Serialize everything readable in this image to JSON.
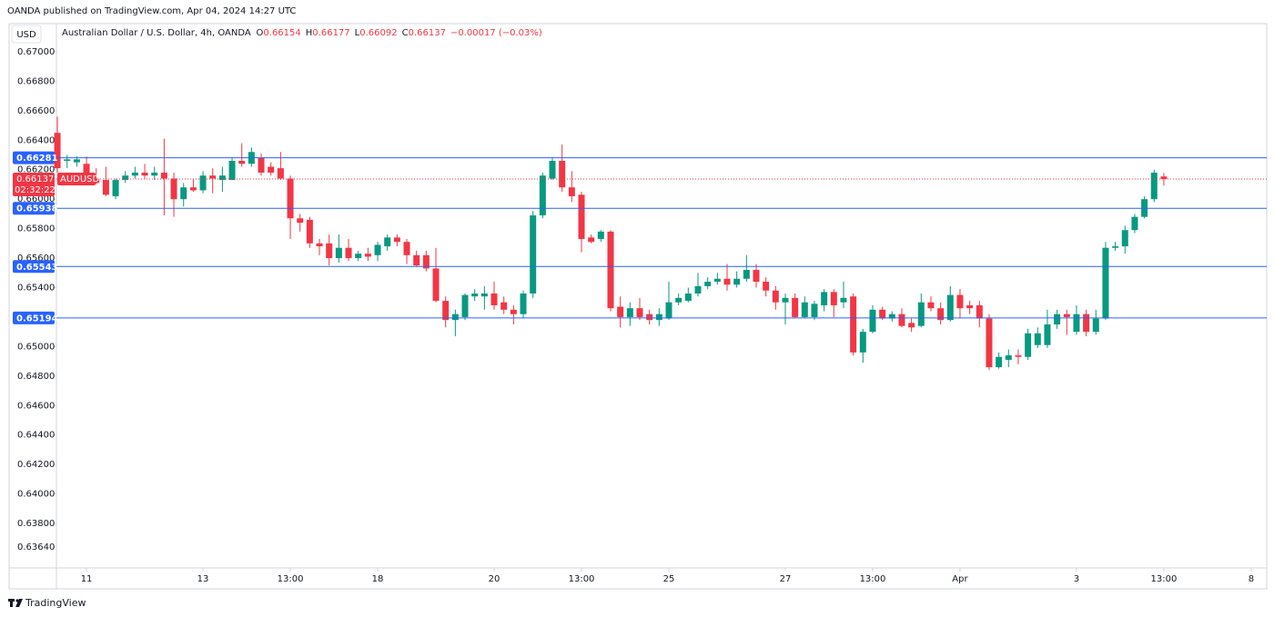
{
  "header": {
    "published": "OANDA published on TradingView.com, Apr 04, 2024 14:27 UTC",
    "currency": "USD",
    "symbol": "Australian Dollar / U.S. Dollar, 4h, OANDA",
    "ohlc_letters": [
      "O",
      "H",
      "L",
      "C"
    ],
    "change": "−0.00017 (−0.03%)"
  },
  "chart_data": {
    "type": "candlestick",
    "x": [
      -3,
      -2,
      -1,
      0,
      1,
      2,
      3,
      4,
      5,
      6,
      7,
      8,
      9,
      10,
      11,
      12,
      13,
      14,
      15,
      16,
      17,
      18,
      19,
      20,
      21,
      22,
      23,
      24,
      25,
      26,
      27,
      28,
      29,
      30,
      31,
      32,
      33,
      34,
      35,
      36,
      37,
      38,
      39,
      40,
      41,
      42,
      43,
      44,
      45,
      46,
      47,
      48,
      49,
      50,
      51,
      52,
      53,
      54,
      55,
      56,
      57,
      58,
      59,
      60,
      61,
      62,
      63,
      64,
      65,
      66,
      67,
      68,
      69,
      70,
      71,
      72,
      73,
      74,
      75,
      76,
      77,
      78,
      79,
      80,
      81,
      82,
      83,
      84,
      85,
      86,
      87,
      88,
      89,
      90,
      91,
      92,
      93,
      94,
      95,
      96,
      97,
      98,
      99,
      100,
      101,
      102,
      103,
      104,
      105,
      106,
      107,
      108,
      109,
      110,
      111
    ],
    "open": [
      0.6645,
      0.6626,
      0.6625,
      0.6624,
      0.6614,
      0.6613,
      0.6602,
      0.6613,
      0.6616,
      0.6618,
      0.6616,
      0.6618,
      0.6614,
      0.66,
      0.6608,
      0.6606,
      0.6616,
      0.6613,
      0.6613,
      0.6626,
      0.6624,
      0.6628,
      0.6622,
      0.6621,
      0.6614,
      0.6587,
      0.6586,
      0.657,
      0.657,
      0.656,
      0.6567,
      0.656,
      0.6563,
      0.6562,
      0.6568,
      0.6574,
      0.6571,
      0.6562,
      0.6562,
      0.6553,
      0.6531,
      0.6518,
      0.652,
      0.6534,
      0.6534,
      0.6536,
      0.653,
      0.6525,
      0.6522,
      0.6536,
      0.6589,
      0.6614,
      0.6626,
      0.6608,
      0.6603,
      0.6574,
      0.6573,
      0.6578,
      0.6527,
      0.652,
      0.6526,
      0.6522,
      0.6518,
      0.6519,
      0.653,
      0.6531,
      0.6536,
      0.6541,
      0.6544,
      0.6546,
      0.6542,
      0.6546,
      0.6552,
      0.6544,
      0.6538,
      0.653,
      0.6533,
      0.652,
      0.652,
      0.6528,
      0.6537,
      0.653,
      0.6534,
      0.6496,
      0.651,
      0.6525,
      0.6519,
      0.6522,
      0.6516,
      0.6514,
      0.653,
      0.6526,
      0.6518,
      0.6535,
      0.6528,
      0.6528,
      0.6519,
      0.6486,
      0.6491,
      0.6494,
      0.6493,
      0.6501,
      0.6501,
      0.6515,
      0.6522,
      0.651,
      0.6522,
      0.651,
      0.6519,
      0.6567,
      0.6568,
      0.6579,
      0.6588,
      0.66,
      0.66154
    ],
    "high": [
      0.6656,
      0.663,
      0.6629,
      0.6629,
      0.6621,
      0.6622,
      0.6614,
      0.6619,
      0.6622,
      0.6624,
      0.6622,
      0.6641,
      0.6618,
      0.6611,
      0.6614,
      0.6619,
      0.6621,
      0.6622,
      0.6628,
      0.6638,
      0.6635,
      0.6631,
      0.6625,
      0.6632,
      0.6616,
      0.659,
      0.6588,
      0.6573,
      0.6576,
      0.6576,
      0.6573,
      0.6565,
      0.6567,
      0.6571,
      0.6576,
      0.6576,
      0.6573,
      0.6565,
      0.6565,
      0.6567,
      0.6534,
      0.6525,
      0.6536,
      0.6539,
      0.6541,
      0.6544,
      0.6534,
      0.6528,
      0.6538,
      0.6592,
      0.6618,
      0.6628,
      0.6637,
      0.6619,
      0.6605,
      0.6576,
      0.6579,
      0.6579,
      0.6534,
      0.653,
      0.6533,
      0.6525,
      0.6526,
      0.6544,
      0.6536,
      0.654,
      0.655,
      0.6547,
      0.655,
      0.6556,
      0.6551,
      0.6562,
      0.6556,
      0.6547,
      0.6541,
      0.6536,
      0.6536,
      0.6534,
      0.6531,
      0.6539,
      0.6539,
      0.6544,
      0.6536,
      0.6512,
      0.6528,
      0.6527,
      0.6524,
      0.6526,
      0.6519,
      0.6536,
      0.6534,
      0.653,
      0.6541,
      0.6539,
      0.6531,
      0.6531,
      0.6522,
      0.6496,
      0.6498,
      0.6498,
      0.6512,
      0.6513,
      0.6525,
      0.6525,
      0.6525,
      0.6528,
      0.6525,
      0.6525,
      0.6571,
      0.6571,
      0.6582,
      0.659,
      0.6602,
      0.662,
      0.66177
    ],
    "low": [
      0.6618,
      0.6621,
      0.6622,
      0.6611,
      0.661,
      0.6602,
      0.66,
      0.6611,
      0.6614,
      0.6614,
      0.6613,
      0.6589,
      0.6588,
      0.6595,
      0.6605,
      0.6604,
      0.6604,
      0.6605,
      0.6613,
      0.6622,
      0.6622,
      0.6616,
      0.6616,
      0.6613,
      0.6573,
      0.6578,
      0.6567,
      0.6562,
      0.6555,
      0.6557,
      0.6558,
      0.6558,
      0.6558,
      0.6558,
      0.6565,
      0.6568,
      0.6556,
      0.6554,
      0.6551,
      0.653,
      0.6513,
      0.6507,
      0.6518,
      0.6531,
      0.6525,
      0.6525,
      0.6522,
      0.6515,
      0.6519,
      0.6533,
      0.6587,
      0.6613,
      0.6605,
      0.6598,
      0.6564,
      0.657,
      0.6571,
      0.6524,
      0.6513,
      0.6514,
      0.6518,
      0.6515,
      0.6514,
      0.6518,
      0.6528,
      0.653,
      0.6534,
      0.6539,
      0.6542,
      0.6538,
      0.654,
      0.6544,
      0.654,
      0.6534,
      0.6525,
      0.6515,
      0.6519,
      0.6519,
      0.6518,
      0.6524,
      0.652,
      0.6526,
      0.6494,
      0.6489,
      0.6509,
      0.6518,
      0.6517,
      0.6513,
      0.651,
      0.6513,
      0.6524,
      0.6515,
      0.6517,
      0.6519,
      0.6522,
      0.6513,
      0.6484,
      0.6485,
      0.6486,
      0.6488,
      0.6491,
      0.6499,
      0.6499,
      0.6512,
      0.6508,
      0.6508,
      0.6507,
      0.6508,
      0.6518,
      0.6565,
      0.6563,
      0.6577,
      0.6587,
      0.6598,
      0.66092
    ],
    "close": [
      0.6621,
      0.6627,
      0.6627,
      0.6614,
      0.6611,
      0.6603,
      0.6613,
      0.6616,
      0.6618,
      0.6616,
      0.6618,
      0.6614,
      0.66,
      0.6608,
      0.6606,
      0.6616,
      0.6614,
      0.6616,
      0.6626,
      0.6624,
      0.6632,
      0.6618,
      0.6618,
      0.6614,
      0.6587,
      0.6584,
      0.657,
      0.6568,
      0.656,
      0.6567,
      0.656,
      0.6563,
      0.6561,
      0.6569,
      0.6574,
      0.6571,
      0.6562,
      0.6555,
      0.6553,
      0.6531,
      0.6518,
      0.6522,
      0.6535,
      0.6536,
      0.6536,
      0.6528,
      0.6525,
      0.6522,
      0.6536,
      0.6589,
      0.6616,
      0.6626,
      0.6608,
      0.6602,
      0.6573,
      0.6571,
      0.6578,
      0.6526,
      0.652,
      0.6526,
      0.652,
      0.6518,
      0.6522,
      0.653,
      0.6533,
      0.6536,
      0.6541,
      0.6544,
      0.6546,
      0.6542,
      0.6546,
      0.6552,
      0.6544,
      0.6538,
      0.653,
      0.6533,
      0.652,
      0.653,
      0.6529,
      0.6537,
      0.6528,
      0.6533,
      0.6496,
      0.651,
      0.6525,
      0.6519,
      0.6522,
      0.6514,
      0.6513,
      0.653,
      0.6526,
      0.6518,
      0.6535,
      0.6526,
      0.6526,
      0.6519,
      0.6486,
      0.6493,
      0.6494,
      0.6493,
      0.6509,
      0.6509,
      0.6515,
      0.6522,
      0.652,
      0.6522,
      0.651,
      0.6519,
      0.6567,
      0.6568,
      0.6579,
      0.6588,
      0.66,
      0.6618,
      0.66137
    ],
    "up_color": "#089981",
    "down_color": "#f23645",
    "ylim": [
      0.63498,
      0.67191
    ],
    "yticks": [
      {
        "value": 0.67,
        "label": "0.67000"
      },
      {
        "value": 0.668,
        "label": "0.66800"
      },
      {
        "value": 0.666,
        "label": "0.66600"
      },
      {
        "value": 0.664,
        "label": "0.66400"
      },
      {
        "value": 0.662,
        "label": "0.66200"
      },
      {
        "value": 0.66,
        "label": "0.66000"
      },
      {
        "value": 0.658,
        "label": "0.65800"
      },
      {
        "value": 0.656,
        "label": "0.65600"
      },
      {
        "value": 0.654,
        "label": "0.65400"
      },
      {
        "value": 0.652,
        "label": "0.65200"
      },
      {
        "value": 0.65,
        "label": "0.65000"
      },
      {
        "value": 0.648,
        "label": "0.64800"
      },
      {
        "value": 0.646,
        "label": "0.64600"
      },
      {
        "value": 0.644,
        "label": "0.64400"
      },
      {
        "value": 0.642,
        "label": "0.64200"
      },
      {
        "value": 0.64,
        "label": "0.64000"
      },
      {
        "value": 0.638,
        "label": "0.63800"
      },
      {
        "value": 0.6364,
        "label": "0.63640"
      }
    ],
    "xlim": [
      -3.1,
      121.6
    ],
    "xticks": [
      {
        "value": 0,
        "label": "11"
      },
      {
        "value": 12,
        "label": "13"
      },
      {
        "value": 21,
        "label": "13:00"
      },
      {
        "value": 30,
        "label": "18"
      },
      {
        "value": 42,
        "label": "20"
      },
      {
        "value": 51,
        "label": "13:00"
      },
      {
        "value": 60,
        "label": "25"
      },
      {
        "value": 72,
        "label": "27"
      },
      {
        "value": 81,
        "label": "13:00"
      },
      {
        "value": 90,
        "label": "Apr"
      },
      {
        "value": 102,
        "label": "3"
      },
      {
        "value": 111,
        "label": "13:00"
      },
      {
        "value": 120,
        "label": "8"
      }
    ],
    "levels": [
      0.66281,
      0.65938,
      0.65543,
      0.65194
    ],
    "level_color": "#2962ff",
    "symbol_tag": "AUDUSD",
    "countdown": "02:32:22"
  },
  "footer": {
    "brand": "TradingView"
  }
}
